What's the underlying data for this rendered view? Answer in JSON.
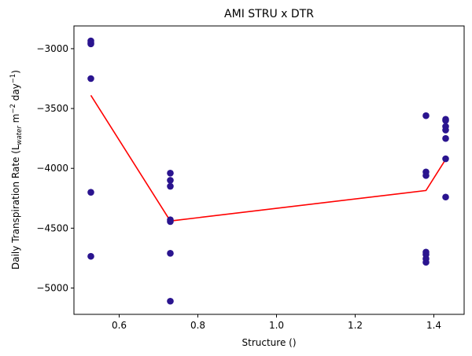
{
  "chart_data": {
    "type": "scatter",
    "title": "AMI STRU x DTR",
    "xlabel": "Structure ()",
    "ylabel": {
      "prefix": "Daily Transpiration Rate (L",
      "sub": "water",
      "middle": " m",
      "sup1": "−2",
      "middle2": " day",
      "sup2": "−1",
      "suffix": ")"
    },
    "xlim": [
      0.485,
      1.477
    ],
    "ylim": [
      -5220,
      -2810
    ],
    "xticks": [
      0.6,
      0.8,
      1.0,
      1.2,
      1.4
    ],
    "xtick_labels": [
      "0.6",
      "0.8",
      "1.0",
      "1.2",
      "1.4"
    ],
    "yticks": [
      -5000,
      -4500,
      -4000,
      -3500,
      -3000
    ],
    "ytick_labels": [
      "−5000",
      "−4500",
      "−4000",
      "−3500",
      "−3000"
    ],
    "grid": false,
    "series": [
      {
        "kind": "scatter",
        "color": "#2a148f",
        "points": [
          [
            0.528,
            -2935
          ],
          [
            0.528,
            -2950
          ],
          [
            0.528,
            -2960
          ],
          [
            0.528,
            -3250
          ],
          [
            0.528,
            -4200
          ],
          [
            0.528,
            -4735
          ],
          [
            0.73,
            -4040
          ],
          [
            0.73,
            -4100
          ],
          [
            0.73,
            -4150
          ],
          [
            0.73,
            -4430
          ],
          [
            0.73,
            -4445
          ],
          [
            0.73,
            -4710
          ],
          [
            0.73,
            -5110
          ],
          [
            1.38,
            -3560
          ],
          [
            1.38,
            -4030
          ],
          [
            1.38,
            -4060
          ],
          [
            1.38,
            -4700
          ],
          [
            1.38,
            -4720
          ],
          [
            1.38,
            -4755
          ],
          [
            1.38,
            -4785
          ],
          [
            1.43,
            -3590
          ],
          [
            1.43,
            -3600
          ],
          [
            1.43,
            -3650
          ],
          [
            1.43,
            -3680
          ],
          [
            1.43,
            -3750
          ],
          [
            1.43,
            -3920
          ],
          [
            1.43,
            -4240
          ]
        ]
      },
      {
        "kind": "line",
        "color": "#ff0000",
        "points": [
          [
            0.528,
            -3390
          ],
          [
            0.73,
            -4440
          ],
          [
            1.38,
            -4185
          ],
          [
            1.43,
            -3925
          ]
        ]
      }
    ]
  }
}
